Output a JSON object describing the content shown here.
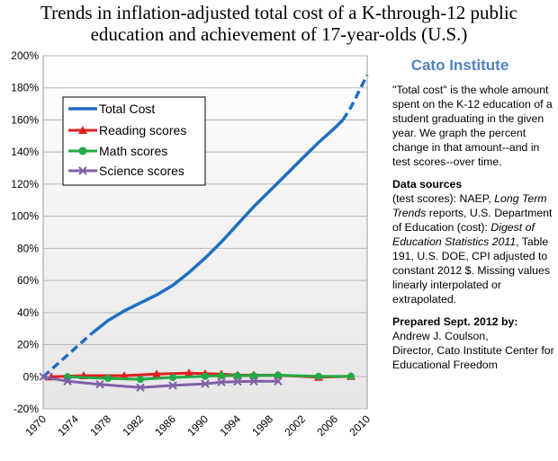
{
  "title_line1": "Trends in inflation-adjusted total cost of a K-through-12 public",
  "title_line2": "education and achievement of 17-year-olds  (U.S.)",
  "sidebar": {
    "org": "Cato Institute",
    "definition": "\"Total cost\" is the whole amount spent on the K-12 education of a student graduating in the given year. We graph the percent change in that amount--and in test scores--over time.",
    "sources_heading": "Data sources",
    "sources_pre": "(test scores): NAEP, ",
    "sources_italic1": "Long Term Trends",
    "sources_mid1": " reports, U.S. Department of Education (cost): ",
    "sources_italic2": "Digest of Education Statistics 2011",
    "sources_post": ", Table 191, U.S. DOE, CPI adjusted to constant 2012 $.  Missing values linearly interpolated or extrapolated.",
    "prepared_heading": "Prepared Sept. 2012 by:",
    "prepared_name": "Andrew J. Coulson,",
    "prepared_title": "Director, Cato Institute Center for Educational Freedom"
  },
  "chart_data": {
    "type": "line",
    "xlim": [
      1970,
      2010
    ],
    "ylim": [
      -20,
      200
    ],
    "x_ticks": [
      1970,
      1974,
      1978,
      1982,
      1986,
      1990,
      1994,
      1998,
      2002,
      2006,
      2010
    ],
    "y_ticks": [
      {
        "v": -20,
        "label": "-20%"
      },
      {
        "v": 0,
        "label": "0%"
      },
      {
        "v": 20,
        "label": "20%"
      },
      {
        "v": 40,
        "label": "40%"
      },
      {
        "v": 60,
        "label": "60%"
      },
      {
        "v": 80,
        "label": "80%"
      },
      {
        "v": 100,
        "label": "100%"
      },
      {
        "v": 120,
        "label": "120%"
      },
      {
        "v": 140,
        "label": "140%"
      },
      {
        "v": 160,
        "label": "160%"
      },
      {
        "v": 180,
        "label": "180%"
      },
      {
        "v": 200,
        "label": "200%"
      }
    ],
    "grid": "horizontal",
    "legend": "upper-left",
    "series": [
      {
        "name": "Total Cost",
        "color": "#1f6fc0",
        "marker": "none",
        "segments": [
          {
            "style": "dashed",
            "points": [
              [
                1970,
                0
              ],
              [
                1972,
                9
              ],
              [
                1974,
                18
              ],
              [
                1976,
                27
              ]
            ]
          },
          {
            "style": "solid",
            "points": [
              [
                1976,
                27
              ],
              [
                1978,
                35
              ],
              [
                1980,
                41
              ],
              [
                1982,
                46
              ],
              [
                1984,
                51
              ],
              [
                1986,
                57
              ],
              [
                1988,
                65
              ],
              [
                1990,
                74
              ],
              [
                1992,
                84
              ],
              [
                1994,
                95
              ],
              [
                1996,
                106
              ],
              [
                1998,
                116
              ],
              [
                2000,
                126
              ],
              [
                2002,
                136
              ],
              [
                2004,
                146
              ],
              [
                2006,
                155
              ],
              [
                2007,
                160
              ]
            ]
          },
          {
            "style": "dashed",
            "points": [
              [
                2007,
                160
              ],
              [
                2008,
                168
              ],
              [
                2009,
                178
              ],
              [
                2010,
                188
              ]
            ]
          }
        ]
      },
      {
        "name": "Reading scores",
        "color": "#e02020",
        "marker": "triangle",
        "points": [
          [
            1971,
            0
          ],
          [
            1975,
            0.7
          ],
          [
            1980,
            0.7
          ],
          [
            1984,
            1.7
          ],
          [
            1988,
            2.3
          ],
          [
            1990,
            2.0
          ],
          [
            1992,
            1.7
          ],
          [
            1994,
            1.0
          ],
          [
            1996,
            1.0
          ],
          [
            1999,
            1.0
          ],
          [
            2004,
            -0.3
          ],
          [
            2008,
            0.3
          ]
        ],
        "marker_points": [
          [
            1971,
            0
          ],
          [
            1975,
            0.7
          ],
          [
            1980,
            0.7
          ],
          [
            1984,
            1.7
          ],
          [
            1988,
            2.3
          ],
          [
            1990,
            2.0
          ],
          [
            1992,
            1.7
          ],
          [
            1994,
            1.0
          ],
          [
            1996,
            1.0
          ],
          [
            1999,
            1.0
          ],
          [
            2004,
            -0.3
          ],
          [
            2008,
            0.3
          ]
        ]
      },
      {
        "name": "Math scores",
        "color": "#22aa44",
        "marker": "circle",
        "points": [
          [
            1973,
            0
          ],
          [
            1978,
            -1.0
          ],
          [
            1982,
            -1.6
          ],
          [
            1986,
            -0.4
          ],
          [
            1990,
            0.3
          ],
          [
            1992,
            0.7
          ],
          [
            1994,
            0.7
          ],
          [
            1996,
            0.7
          ],
          [
            1999,
            1.0
          ],
          [
            2004,
            0.3
          ],
          [
            2008,
            0.3
          ]
        ],
        "marker_points": [
          [
            1973,
            0
          ],
          [
            1978,
            -1.0
          ],
          [
            1982,
            -1.6
          ],
          [
            1986,
            -0.4
          ],
          [
            1990,
            0.3
          ],
          [
            1992,
            0.7
          ],
          [
            1994,
            0.7
          ],
          [
            1996,
            0.7
          ],
          [
            1999,
            1.0
          ],
          [
            2004,
            0.3
          ],
          [
            2008,
            0.3
          ]
        ]
      },
      {
        "name": "Science scores",
        "color": "#8060a8",
        "marker": "x",
        "points": [
          [
            1970,
            0
          ],
          [
            1973,
            -2.8
          ],
          [
            1977,
            -4.7
          ],
          [
            1982,
            -6.7
          ],
          [
            1986,
            -5.4
          ],
          [
            1990,
            -4.4
          ],
          [
            1992,
            -3.4
          ],
          [
            1994,
            -3.0
          ],
          [
            1996,
            -2.8
          ],
          [
            1999,
            -2.8
          ]
        ],
        "marker_points": [
          [
            1970,
            0
          ],
          [
            1973,
            -2.8
          ],
          [
            1977,
            -4.7
          ],
          [
            1982,
            -6.7
          ],
          [
            1986,
            -5.4
          ],
          [
            1990,
            -4.4
          ],
          [
            1992,
            -3.4
          ],
          [
            1994,
            -3.0
          ],
          [
            1996,
            -2.8
          ],
          [
            1999,
            -2.8
          ]
        ]
      }
    ]
  }
}
